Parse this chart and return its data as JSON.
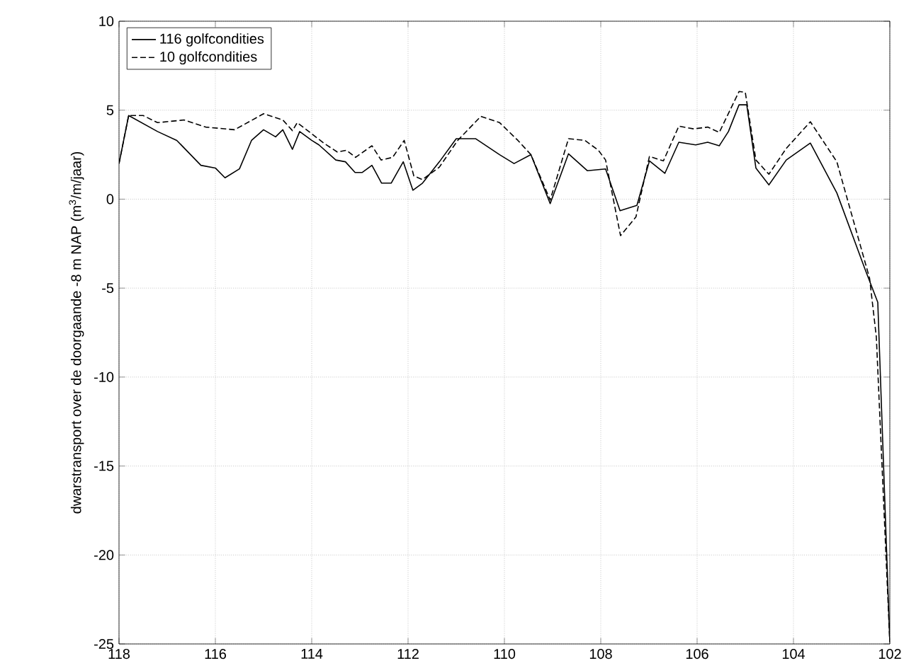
{
  "chart_data": {
    "type": "line",
    "ylabel": "dwarstransport over de doorgaande -8 m NAP (m$^{3}$/m/jaar)",
    "xlim": [
      118,
      102
    ],
    "xticks": [
      118,
      116,
      114,
      112,
      110,
      108,
      106,
      104,
      102
    ],
    "ylim": [
      -25,
      10
    ],
    "yticks": [
      -25,
      -20,
      -15,
      -10,
      -5,
      0,
      5,
      10
    ],
    "grid": true,
    "legend": "top left",
    "marker": "none",
    "series": [
      {
        "name": "116 golfcondities",
        "color": "#000000",
        "line_style": "solid",
        "x": [
          118,
          117.8,
          117.2,
          116.8,
          116.3,
          116.0,
          115.8,
          115.5,
          115.25,
          115.0,
          114.75,
          114.6,
          114.4,
          114.25,
          114.0,
          113.85,
          113.5,
          113.3,
          113.1,
          112.95,
          112.75,
          112.55,
          112.35,
          112.1,
          111.9,
          111.7,
          111.35,
          111.0,
          110.6,
          110.1,
          109.8,
          109.45,
          109.05,
          108.67,
          108.28,
          107.9,
          107.6,
          107.25,
          106.99,
          106.67,
          106.38,
          106.03,
          105.78,
          105.54,
          105.35,
          105.13,
          104.97,
          104.78,
          104.51,
          104.15,
          103.65,
          103.1,
          102.52,
          102.25,
          102.0
        ],
        "values": [
          2.0,
          4.7,
          3.8,
          3.3,
          1.9,
          1.75,
          1.2,
          1.7,
          3.3,
          3.9,
          3.5,
          3.9,
          2.8,
          3.8,
          3.3,
          3.05,
          2.2,
          2.1,
          1.5,
          1.5,
          1.9,
          0.9,
          0.9,
          2.1,
          0.5,
          0.9,
          2.1,
          3.4,
          3.4,
          2.5,
          2.0,
          2.5,
          -0.25,
          2.55,
          1.6,
          1.7,
          -0.65,
          -0.35,
          2.15,
          1.45,
          3.2,
          3.05,
          3.2,
          3.0,
          3.8,
          5.3,
          5.3,
          1.75,
          0.8,
          2.2,
          3.15,
          0.35,
          -3.9,
          -5.8,
          -24.9
        ]
      },
      {
        "name": "10 golfcondities",
        "color": "#000000",
        "line_style": "dashed",
        "x": [
          118,
          117.8,
          117.5,
          117.2,
          116.65,
          116.2,
          115.6,
          115.0,
          114.6,
          114.4,
          114.3,
          113.75,
          113.47,
          113.28,
          113.09,
          112.75,
          112.56,
          112.32,
          112.08,
          111.88,
          111.7,
          111.35,
          110.97,
          110.49,
          110.1,
          109.72,
          109.45,
          109.05,
          108.67,
          108.33,
          108.05,
          107.9,
          107.59,
          107.27,
          106.99,
          106.7,
          106.38,
          106.07,
          105.78,
          105.54,
          105.13,
          105.0,
          104.78,
          104.51,
          104.15,
          103.65,
          103.1,
          102.42,
          102.28,
          102.0
        ],
        "values": [
          2.0,
          4.7,
          4.7,
          4.3,
          4.45,
          4.05,
          3.9,
          4.8,
          4.45,
          3.85,
          4.3,
          3.15,
          2.65,
          2.75,
          2.35,
          3.0,
          2.2,
          2.35,
          3.3,
          1.3,
          1.1,
          1.8,
          3.3,
          4.65,
          4.3,
          3.3,
          2.5,
          -0.05,
          3.4,
          3.3,
          2.75,
          2.2,
          -2.05,
          -1.0,
          2.4,
          2.15,
          4.1,
          3.95,
          4.05,
          3.75,
          6.05,
          6.0,
          2.2,
          1.4,
          2.85,
          4.35,
          2.1,
          -4.45,
          -7.75,
          -24.9
        ]
      }
    ]
  }
}
